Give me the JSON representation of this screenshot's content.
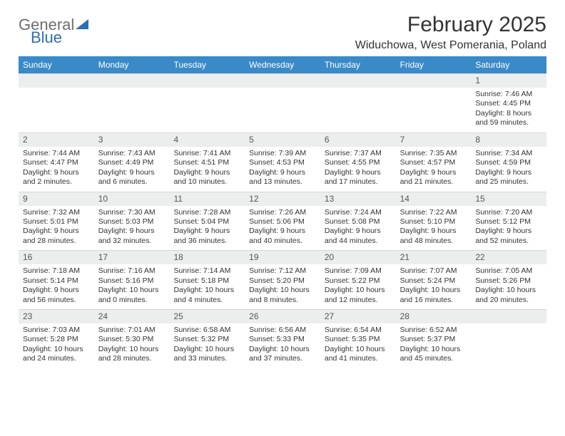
{
  "logo": {
    "text1": "General",
    "text2": "Blue"
  },
  "title": "February 2025",
  "location": "Widuchowa, West Pomerania, Poland",
  "weekdays": [
    "Sunday",
    "Monday",
    "Tuesday",
    "Wednesday",
    "Thursday",
    "Friday",
    "Saturday"
  ],
  "colors": {
    "header_bar": "#3a8ac8",
    "daynum_bg": "#eceeee",
    "logo_gray": "#6e6e6e",
    "logo_blue": "#2f6fb3"
  },
  "weeks": [
    [
      {
        "day": "",
        "lines": []
      },
      {
        "day": "",
        "lines": []
      },
      {
        "day": "",
        "lines": []
      },
      {
        "day": "",
        "lines": []
      },
      {
        "day": "",
        "lines": []
      },
      {
        "day": "",
        "lines": []
      },
      {
        "day": "1",
        "lines": [
          "Sunrise: 7:46 AM",
          "Sunset: 4:45 PM",
          "Daylight: 8 hours",
          "and 59 minutes."
        ]
      }
    ],
    [
      {
        "day": "2",
        "lines": [
          "Sunrise: 7:44 AM",
          "Sunset: 4:47 PM",
          "Daylight: 9 hours",
          "and 2 minutes."
        ]
      },
      {
        "day": "3",
        "lines": [
          "Sunrise: 7:43 AM",
          "Sunset: 4:49 PM",
          "Daylight: 9 hours",
          "and 6 minutes."
        ]
      },
      {
        "day": "4",
        "lines": [
          "Sunrise: 7:41 AM",
          "Sunset: 4:51 PM",
          "Daylight: 9 hours",
          "and 10 minutes."
        ]
      },
      {
        "day": "5",
        "lines": [
          "Sunrise: 7:39 AM",
          "Sunset: 4:53 PM",
          "Daylight: 9 hours",
          "and 13 minutes."
        ]
      },
      {
        "day": "6",
        "lines": [
          "Sunrise: 7:37 AM",
          "Sunset: 4:55 PM",
          "Daylight: 9 hours",
          "and 17 minutes."
        ]
      },
      {
        "day": "7",
        "lines": [
          "Sunrise: 7:35 AM",
          "Sunset: 4:57 PM",
          "Daylight: 9 hours",
          "and 21 minutes."
        ]
      },
      {
        "day": "8",
        "lines": [
          "Sunrise: 7:34 AM",
          "Sunset: 4:59 PM",
          "Daylight: 9 hours",
          "and 25 minutes."
        ]
      }
    ],
    [
      {
        "day": "9",
        "lines": [
          "Sunrise: 7:32 AM",
          "Sunset: 5:01 PM",
          "Daylight: 9 hours",
          "and 28 minutes."
        ]
      },
      {
        "day": "10",
        "lines": [
          "Sunrise: 7:30 AM",
          "Sunset: 5:03 PM",
          "Daylight: 9 hours",
          "and 32 minutes."
        ]
      },
      {
        "day": "11",
        "lines": [
          "Sunrise: 7:28 AM",
          "Sunset: 5:04 PM",
          "Daylight: 9 hours",
          "and 36 minutes."
        ]
      },
      {
        "day": "12",
        "lines": [
          "Sunrise: 7:26 AM",
          "Sunset: 5:06 PM",
          "Daylight: 9 hours",
          "and 40 minutes."
        ]
      },
      {
        "day": "13",
        "lines": [
          "Sunrise: 7:24 AM",
          "Sunset: 5:08 PM",
          "Daylight: 9 hours",
          "and 44 minutes."
        ]
      },
      {
        "day": "14",
        "lines": [
          "Sunrise: 7:22 AM",
          "Sunset: 5:10 PM",
          "Daylight: 9 hours",
          "and 48 minutes."
        ]
      },
      {
        "day": "15",
        "lines": [
          "Sunrise: 7:20 AM",
          "Sunset: 5:12 PM",
          "Daylight: 9 hours",
          "and 52 minutes."
        ]
      }
    ],
    [
      {
        "day": "16",
        "lines": [
          "Sunrise: 7:18 AM",
          "Sunset: 5:14 PM",
          "Daylight: 9 hours",
          "and 56 minutes."
        ]
      },
      {
        "day": "17",
        "lines": [
          "Sunrise: 7:16 AM",
          "Sunset: 5:16 PM",
          "Daylight: 10 hours",
          "and 0 minutes."
        ]
      },
      {
        "day": "18",
        "lines": [
          "Sunrise: 7:14 AM",
          "Sunset: 5:18 PM",
          "Daylight: 10 hours",
          "and 4 minutes."
        ]
      },
      {
        "day": "19",
        "lines": [
          "Sunrise: 7:12 AM",
          "Sunset: 5:20 PM",
          "Daylight: 10 hours",
          "and 8 minutes."
        ]
      },
      {
        "day": "20",
        "lines": [
          "Sunrise: 7:09 AM",
          "Sunset: 5:22 PM",
          "Daylight: 10 hours",
          "and 12 minutes."
        ]
      },
      {
        "day": "21",
        "lines": [
          "Sunrise: 7:07 AM",
          "Sunset: 5:24 PM",
          "Daylight: 10 hours",
          "and 16 minutes."
        ]
      },
      {
        "day": "22",
        "lines": [
          "Sunrise: 7:05 AM",
          "Sunset: 5:26 PM",
          "Daylight: 10 hours",
          "and 20 minutes."
        ]
      }
    ],
    [
      {
        "day": "23",
        "lines": [
          "Sunrise: 7:03 AM",
          "Sunset: 5:28 PM",
          "Daylight: 10 hours",
          "and 24 minutes."
        ]
      },
      {
        "day": "24",
        "lines": [
          "Sunrise: 7:01 AM",
          "Sunset: 5:30 PM",
          "Daylight: 10 hours",
          "and 28 minutes."
        ]
      },
      {
        "day": "25",
        "lines": [
          "Sunrise: 6:58 AM",
          "Sunset: 5:32 PM",
          "Daylight: 10 hours",
          "and 33 minutes."
        ]
      },
      {
        "day": "26",
        "lines": [
          "Sunrise: 6:56 AM",
          "Sunset: 5:33 PM",
          "Daylight: 10 hours",
          "and 37 minutes."
        ]
      },
      {
        "day": "27",
        "lines": [
          "Sunrise: 6:54 AM",
          "Sunset: 5:35 PM",
          "Daylight: 10 hours",
          "and 41 minutes."
        ]
      },
      {
        "day": "28",
        "lines": [
          "Sunrise: 6:52 AM",
          "Sunset: 5:37 PM",
          "Daylight: 10 hours",
          "and 45 minutes."
        ]
      },
      {
        "day": "",
        "lines": []
      }
    ]
  ]
}
